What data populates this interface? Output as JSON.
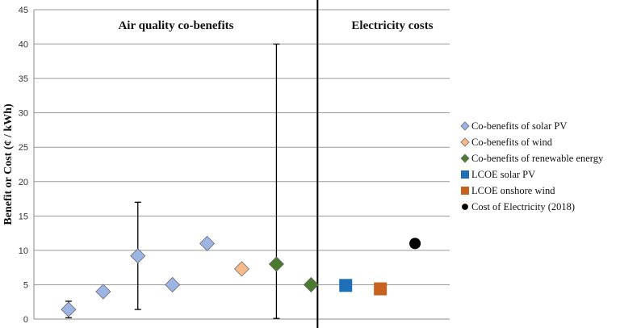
{
  "chart_data": {
    "type": "scatter",
    "ylabel": "Benefit or Cost (¢ / kWh)",
    "ylim": [
      0,
      45
    ],
    "yticks": [
      0,
      5,
      10,
      15,
      20,
      25,
      30,
      35,
      40,
      45
    ],
    "grid": true,
    "x_positions": 12,
    "sections": [
      {
        "label": "Air quality co-benefits",
        "x_range": [
          0,
          8
        ]
      },
      {
        "label": "Electricity costs",
        "x_range": [
          8,
          12
        ]
      }
    ],
    "series": [
      {
        "name": "Co-benefits of solar PV",
        "marker": "diamond",
        "color": "#9DB5E4",
        "points": [
          {
            "x": 1,
            "y": 1.4,
            "err": [
              0.2,
              2.6
            ]
          },
          {
            "x": 2,
            "y": 4.0
          },
          {
            "x": 3,
            "y": 9.2,
            "err": [
              1.4,
              17.0
            ]
          },
          {
            "x": 4,
            "y": 5.0
          },
          {
            "x": 5,
            "y": 11.0
          }
        ]
      },
      {
        "name": "Co-benefits of wind",
        "marker": "diamond",
        "color": "#F5B98A",
        "points": [
          {
            "x": 6,
            "y": 7.3
          }
        ]
      },
      {
        "name": "Co-benefits of renewable energy",
        "marker": "diamond",
        "color": "#4A7A2E",
        "points": [
          {
            "x": 7,
            "y": 8.0,
            "err": [
              0.1,
              40.0
            ]
          },
          {
            "x": 8,
            "y": 5.0
          }
        ]
      },
      {
        "name": "LCOE solar PV",
        "marker": "square",
        "color": "#1E6FB8",
        "points": [
          {
            "x": 9,
            "y": 4.9
          }
        ]
      },
      {
        "name": "LCOE onshore wind",
        "marker": "square",
        "color": "#C7621E",
        "points": [
          {
            "x": 10,
            "y": 4.4
          }
        ]
      },
      {
        "name": "Cost of Electricity (2018)",
        "marker": "circle",
        "color": "#000000",
        "points": [
          {
            "x": 11,
            "y": 11.0
          }
        ]
      }
    ],
    "legend_position": "right"
  }
}
